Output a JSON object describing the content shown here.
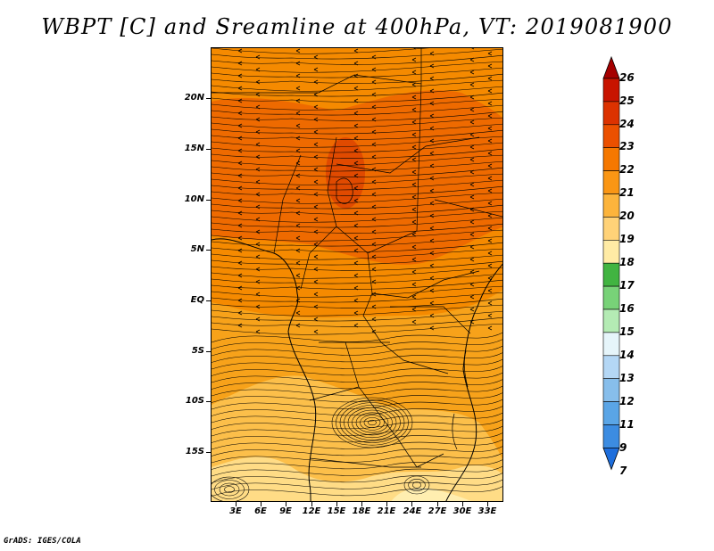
{
  "title": "WBPT [C] and Sreamline at 400hPa, VT: 2019081900",
  "lat_labels": [
    "20N",
    "15N",
    "10N",
    "5N",
    "EQ",
    "5S",
    "10S",
    "15S"
  ],
  "lon_labels": [
    "3E",
    "6E",
    "9E",
    "12E",
    "15E",
    "18E",
    "21E",
    "24E",
    "27E",
    "30E",
    "33E"
  ],
  "colorbar": {
    "labels": [
      "26",
      "25",
      "24",
      "23",
      "22",
      "21",
      "20",
      "19",
      "18",
      "17",
      "16",
      "15",
      "14",
      "13",
      "12",
      "11",
      "9",
      "7"
    ],
    "colors": [
      "#a50000",
      "#c81400",
      "#dc3200",
      "#eb5000",
      "#f57800",
      "#fa9614",
      "#fcb43c",
      "#ffd278",
      "#ffeba5",
      "#41b441",
      "#78d278",
      "#b4ebb4",
      "#e6f5fa",
      "#b4d7f5",
      "#87beeb",
      "#5aa5e6",
      "#3c8ce1",
      "#1e6edc"
    ]
  },
  "credit": "GrADS: IGES/COLA"
}
